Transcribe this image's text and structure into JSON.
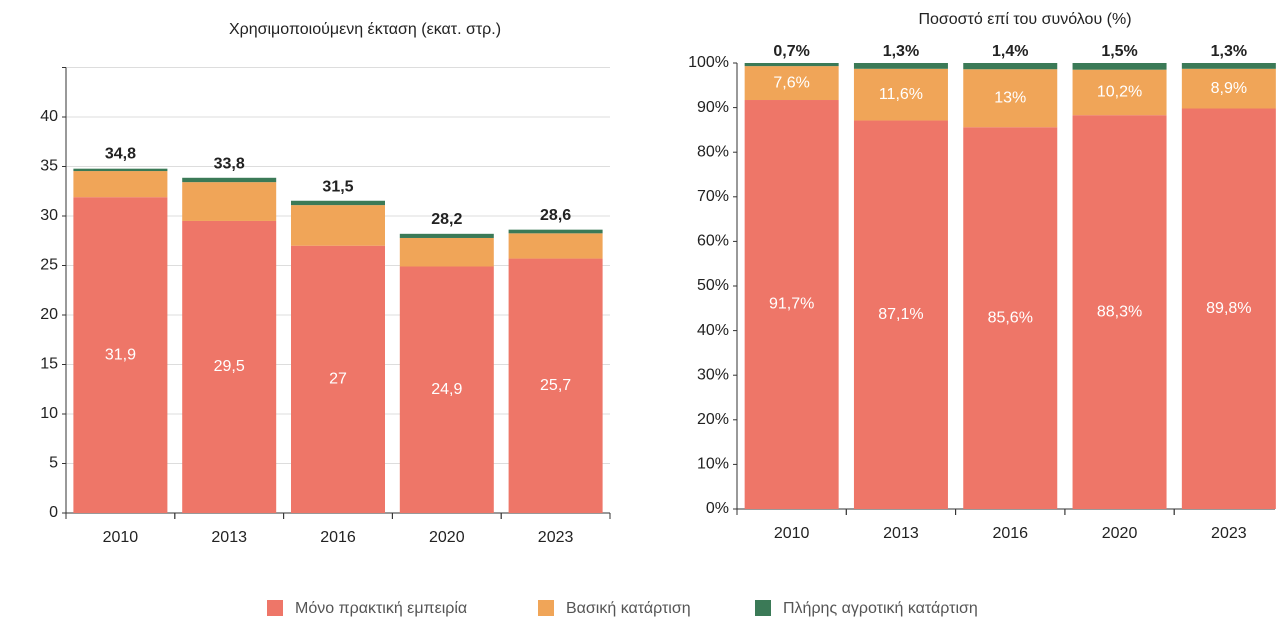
{
  "chart_data": [
    {
      "type": "stacked-bar",
      "title": "Χρησιμοποιούμενη έκταση (εκατ. στρ.)",
      "categories": [
        "2010",
        "2013",
        "2016",
        "2020",
        "2023"
      ],
      "series": [
        {
          "name": "Μόνο πρακτική εμπειρία",
          "color": "#ee7668",
          "values": [
            31.9,
            29.5,
            27,
            24.9,
            25.7
          ],
          "value_labels": [
            "31,9",
            "29,5",
            "27",
            "24,9",
            "25,7"
          ]
        },
        {
          "name": "Βασική κατάρτιση",
          "color": "#f0a558",
          "values": [
            2.64,
            3.92,
            4.1,
            2.88,
            2.55
          ]
        },
        {
          "name": "Πλήρης αγροτική κατάρτιση",
          "color": "#3b7a57",
          "values": [
            0.24,
            0.44,
            0.44,
            0.42,
            0.37
          ]
        }
      ],
      "totals": [
        34.8,
        33.8,
        31.5,
        28.2,
        28.6
      ],
      "total_labels": [
        "34,8",
        "33,8",
        "31,5",
        "28,2",
        "28,6"
      ],
      "ylim": [
        0,
        45
      ],
      "yticks": [
        0,
        5,
        10,
        15,
        20,
        25,
        30,
        35,
        40
      ],
      "grid": true
    },
    {
      "type": "stacked-bar",
      "title": "Ποσοστό επί του συνόλου (%)",
      "categories": [
        "2010",
        "2013",
        "2016",
        "2020",
        "2023"
      ],
      "series": [
        {
          "color": "#ee7668",
          "values": [
            91.7,
            87.1,
            85.6,
            88.3,
            89.8
          ],
          "value_labels": [
            "91,7%",
            "87,1%",
            "85,6%",
            "88,3%",
            "89,8%"
          ]
        },
        {
          "color": "#f0a558",
          "values": [
            7.6,
            11.6,
            13,
            10.2,
            8.9
          ],
          "value_labels": [
            "7,6%",
            "11,6%",
            "13%",
            "10,2%",
            "8,9%"
          ]
        },
        {
          "color": "#3b7a57",
          "values": [
            0.7,
            1.3,
            1.4,
            1.5,
            1.3
          ],
          "value_labels": [
            "0,7%",
            "1,3%",
            "1,4%",
            "1,5%",
            "1,3%"
          ]
        }
      ],
      "ylim": [
        0,
        100
      ],
      "yticks": [
        {
          "value": 0,
          "label": "0%"
        },
        {
          "value": 10,
          "label": "10%"
        },
        {
          "value": 20,
          "label": "20%"
        },
        {
          "value": 30,
          "label": "30%"
        },
        {
          "value": 40,
          "label": "40%"
        },
        {
          "value": 50,
          "label": "50%"
        },
        {
          "value": 60,
          "label": "60%"
        },
        {
          "value": 70,
          "label": "70%"
        },
        {
          "value": 80,
          "label": "80%"
        },
        {
          "value": 90,
          "label": "90%"
        },
        {
          "value": 100,
          "label": "100%"
        }
      ],
      "grid": false
    }
  ]
}
